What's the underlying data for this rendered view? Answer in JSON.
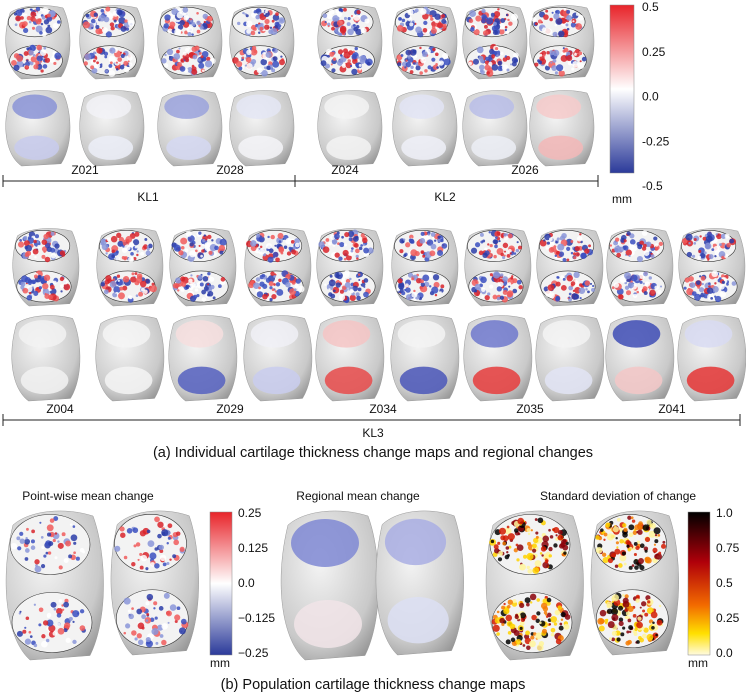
{
  "panel_a": {
    "groups": [
      {
        "label": "KL1",
        "subjects": [
          "Z021",
          "Z028"
        ]
      },
      {
        "label": "KL2",
        "subjects": [
          "Z024",
          "Z026"
        ]
      },
      {
        "label": "KL3",
        "subjects": [
          "Z004",
          "Z029",
          "Z034",
          "Z035",
          "Z041"
        ]
      }
    ],
    "colorbar": {
      "ticks": [
        "0.5",
        "0.25",
        "0.0",
        "-0.25",
        "-0.5"
      ],
      "unit": "mm"
    },
    "caption": "(a) Individual cartilage thickness change maps and regional changes"
  },
  "panel_b": {
    "titles": [
      "Point-wise mean change",
      "Regional mean change",
      "Standard deviation of change"
    ],
    "colorbars": [
      {
        "ticks": [
          "0.25",
          "0.125",
          "0.0",
          "−0.125",
          "−0.25"
        ],
        "unit": "mm"
      },
      {
        "ticks": [
          "1.0",
          "0.75",
          "0.5",
          "0.25",
          "0.0"
        ],
        "unit": "mm"
      }
    ],
    "caption": "(b) Population cartilage thickness change maps"
  }
}
